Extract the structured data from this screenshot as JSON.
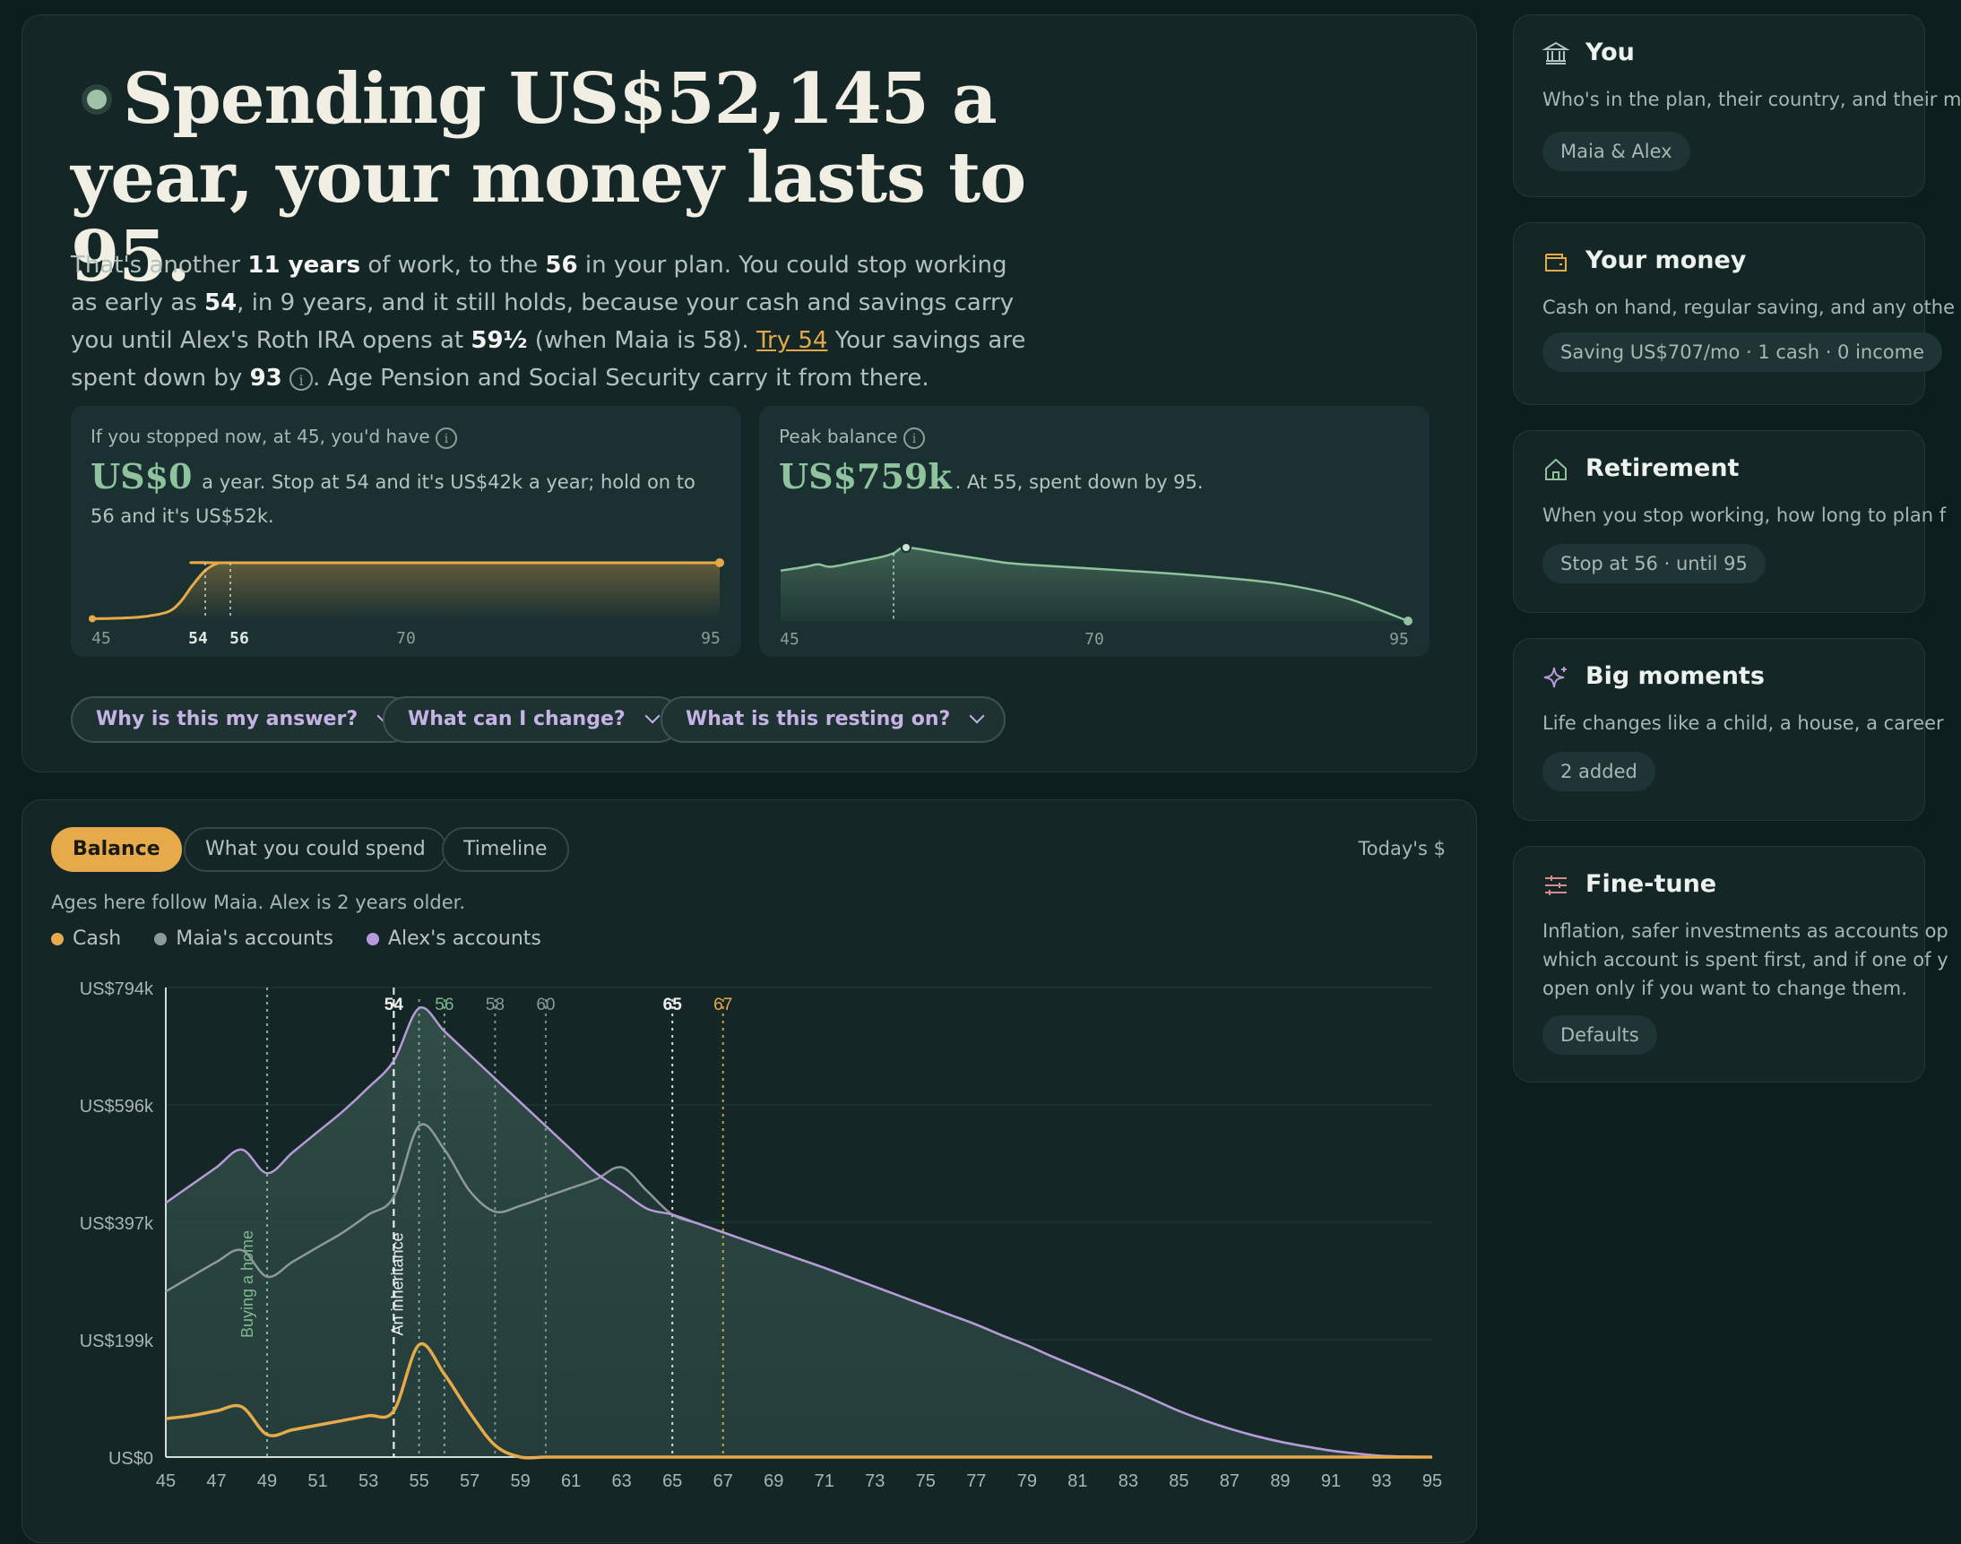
{
  "hero": {
    "headline": "Spending US$52,145 a year, your money lasts to 95.",
    "para": {
      "t1": "That's another ",
      "b1": "11 years",
      "t2": " of work, to the ",
      "b2": "56",
      "t3": " in your plan. You could stop working as early as ",
      "b3": "54",
      "t4": ", in 9 years, and it still holds, because your cash and savings carry you until Alex's Roth IRA opens at ",
      "b4": "59½",
      "t5": " (when Maia is 58). ",
      "link": "Try 54",
      "t6": " Your savings are spent down by ",
      "b5": "93",
      "t7": ". Age Pension and Social Security carry it from there."
    },
    "stop_now": {
      "label": "If you stopped now, at 45, you'd have",
      "amount": "US$0",
      "text": " a year. Stop at 54 and it's US$42k a year; hold on to 56 and it's US$52k.",
      "axis": [
        "45",
        "54",
        "56",
        "70",
        "95"
      ],
      "series": [
        [
          45,
          0.1
        ],
        [
          47,
          0.2
        ],
        [
          49,
          0.5
        ],
        [
          51,
          1.5
        ],
        [
          52,
          3.5
        ],
        [
          53,
          7
        ],
        [
          54,
          10
        ],
        [
          55,
          11.5
        ],
        [
          56,
          11.6
        ],
        [
          95,
          11.6
        ]
      ]
    },
    "peak": {
      "label": "Peak balance",
      "amount": "US$759k",
      "text": ". At 55, spent down by 95.",
      "axis": [
        "45",
        "70",
        "95"
      ],
      "series": [
        [
          45,
          520
        ],
        [
          47,
          560
        ],
        [
          48,
          585
        ],
        [
          49,
          560
        ],
        [
          51,
          610
        ],
        [
          53,
          660
        ],
        [
          54,
          700
        ],
        [
          55,
          759
        ],
        [
          58,
          700
        ],
        [
          61,
          640
        ],
        [
          63,
          600
        ],
        [
          65,
          580
        ],
        [
          70,
          540
        ],
        [
          75,
          500
        ],
        [
          80,
          450
        ],
        [
          85,
          380
        ],
        [
          90,
          240
        ],
        [
          95,
          0
        ]
      ]
    },
    "pills": [
      "Why is this my answer?",
      "What can I change?",
      "What is this resting on?"
    ]
  },
  "chart_panel": {
    "tabs": [
      "Balance",
      "What you could spend",
      "Timeline"
    ],
    "active_tab": "Balance",
    "unit": "Today's $",
    "note": "Ages here follow Maia. Alex is 2 years older.",
    "legend": [
      {
        "name": "Cash",
        "color": "#e6aa4a"
      },
      {
        "name": "Maia's accounts",
        "color": "#8e9a97"
      },
      {
        "name": "Alex's accounts",
        "color": "#b79ad8"
      }
    ]
  },
  "chart_data": {
    "type": "area",
    "x": [
      45,
      46,
      47,
      48,
      49,
      50,
      51,
      52,
      53,
      54,
      55,
      56,
      57,
      58,
      59,
      60,
      61,
      62,
      63,
      64,
      65,
      66,
      67,
      68,
      69,
      70,
      71,
      72,
      73,
      74,
      75,
      76,
      77,
      78,
      79,
      80,
      81,
      82,
      83,
      84,
      85,
      86,
      87,
      88,
      89,
      90,
      91,
      92,
      93,
      94,
      95
    ],
    "series": [
      {
        "name": "Cash",
        "color": "#e6aa4a",
        "values": [
          65000,
          70000,
          78000,
          85000,
          38000,
          46000,
          54000,
          62000,
          70000,
          78000,
          190000,
          140000,
          75000,
          20000,
          0,
          0,
          0,
          0,
          0,
          0,
          0,
          0,
          0,
          0,
          0,
          0,
          0,
          0,
          0,
          0,
          0,
          0,
          0,
          0,
          0,
          0,
          0,
          0,
          0,
          0,
          0,
          0,
          0,
          0,
          0,
          0,
          0,
          0,
          0,
          0,
          0
        ]
      },
      {
        "name": "Maia's accounts",
        "color": "#8e9a97",
        "values": [
          280000,
          305000,
          330000,
          350000,
          305000,
          330000,
          355000,
          380000,
          410000,
          440000,
          560000,
          520000,
          450000,
          415000,
          425000,
          440000,
          455000,
          470000,
          490000,
          450000,
          410000,
          395000,
          380000,
          365000,
          350000,
          335000,
          320000,
          304000,
          288000,
          272000,
          256000,
          240000,
          224000,
          206000,
          189000,
          170000,
          152000,
          134000,
          116000,
          97000,
          78000,
          62000,
          48000,
          36000,
          26000,
          18000,
          11000,
          6000,
          2000,
          0,
          0
        ]
      },
      {
        "name": "Alex's accounts",
        "color": "#b79ad8",
        "values": [
          430000,
          460000,
          490000,
          520000,
          480000,
          515000,
          550000,
          585000,
          625000,
          670000,
          759000,
          720000,
          680000,
          640000,
          600000,
          560000,
          520000,
          480000,
          450000,
          420000,
          410000,
          395000,
          380000,
          365000,
          350000,
          335000,
          320000,
          304000,
          288000,
          272000,
          256000,
          240000,
          224000,
          206000,
          189000,
          170000,
          152000,
          134000,
          116000,
          97000,
          78000,
          62000,
          48000,
          36000,
          26000,
          18000,
          11000,
          6000,
          2000,
          1000,
          0
        ]
      }
    ],
    "ylim": [
      0,
      794000
    ],
    "ytick_labels": [
      "US$0",
      "US$199k",
      "US$397k",
      "US$596k",
      "US$794k"
    ],
    "xtick_labels": [
      "45",
      "47",
      "49",
      "51",
      "53",
      "55",
      "57",
      "59",
      "61",
      "63",
      "65",
      "67",
      "69",
      "71",
      "73",
      "75",
      "77",
      "79",
      "81",
      "83",
      "85",
      "87",
      "89",
      "91",
      "93",
      "95"
    ],
    "markers": [
      {
        "age": 49,
        "label": "Buying a home",
        "color": "#7fb88f"
      },
      {
        "age": 54,
        "label": "An inheritance",
        "color": "#e9ece9"
      }
    ],
    "age_lines": [
      {
        "age": 54,
        "label": "54",
        "color": "#f1f1ec"
      },
      {
        "age": 55,
        "label": "",
        "color": "#7fb88f"
      },
      {
        "age": 56,
        "label": "56",
        "color": "#7fb88f"
      },
      {
        "age": 58,
        "label": "58",
        "color": "#8a9a96"
      },
      {
        "age": 60,
        "label": "60",
        "color": "#8a9a96"
      },
      {
        "age": 65,
        "label": "65",
        "color": "#f1f1ec"
      },
      {
        "age": 67,
        "label": "67",
        "color": "#e6aa4a"
      }
    ]
  },
  "sidebar": [
    {
      "title": "You",
      "icon": "bank-icon",
      "desc": "Who's in the plan, their country, and their m",
      "chip": "Maia & Alex"
    },
    {
      "title": "Your money",
      "icon": "wallet-icon",
      "desc": "Cash on hand, regular saving, and any othe",
      "chip": "Saving US$707/mo · 1 cash · 0 income"
    },
    {
      "title": "Retirement",
      "icon": "home-icon",
      "desc": "When you stop working, how long to plan f",
      "chip": "Stop at 56 · until 95"
    },
    {
      "title": "Big moments",
      "icon": "sparkle-icon",
      "desc": "Life changes like a child, a house, a career",
      "chip": "2 added"
    },
    {
      "title": "Fine-tune",
      "icon": "sliders-icon",
      "desc": "Inflation, safer investments as accounts op which account is spent first, and if one of y open only if you want to change them.",
      "chip": "Defaults"
    }
  ]
}
